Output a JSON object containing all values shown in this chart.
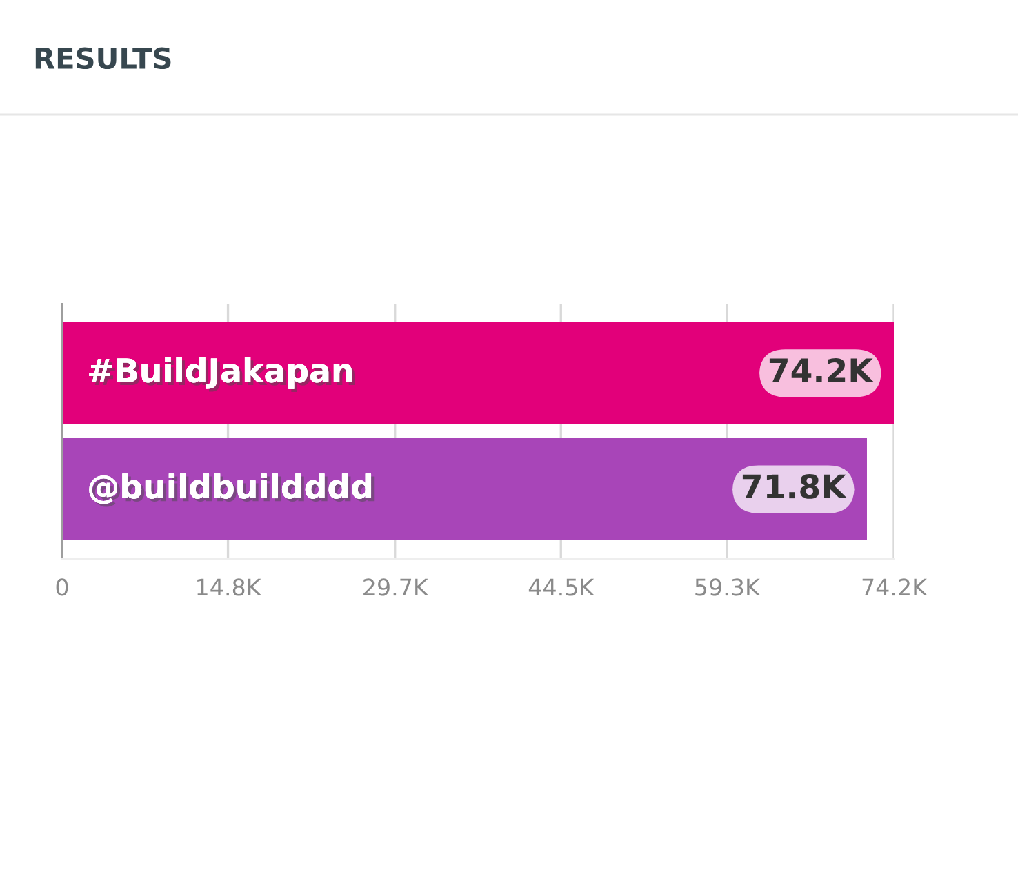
{
  "chart_data": {
    "type": "bar",
    "title": "RESULTS",
    "orientation": "horizontal",
    "categories": [
      "#BuildJakapan",
      "@buildbuildddd"
    ],
    "values": [
      74200,
      71800
    ],
    "colors": [
      "#e2007a",
      "#a845b8"
    ],
    "value_labels": [
      "74.2K",
      "71.8K"
    ],
    "xlim": [
      0,
      74200
    ],
    "xticks": [
      0,
      {
        "value": 14800,
        "label": "14.8K"
      },
      {
        "value": 29700,
        "label": "29.7K"
      },
      {
        "value": 44500,
        "label": "44.5K"
      },
      {
        "value": 59300,
        "label": "59.3K"
      },
      {
        "value": 74200,
        "label": "74.2K"
      }
    ],
    "grid": "x"
  }
}
